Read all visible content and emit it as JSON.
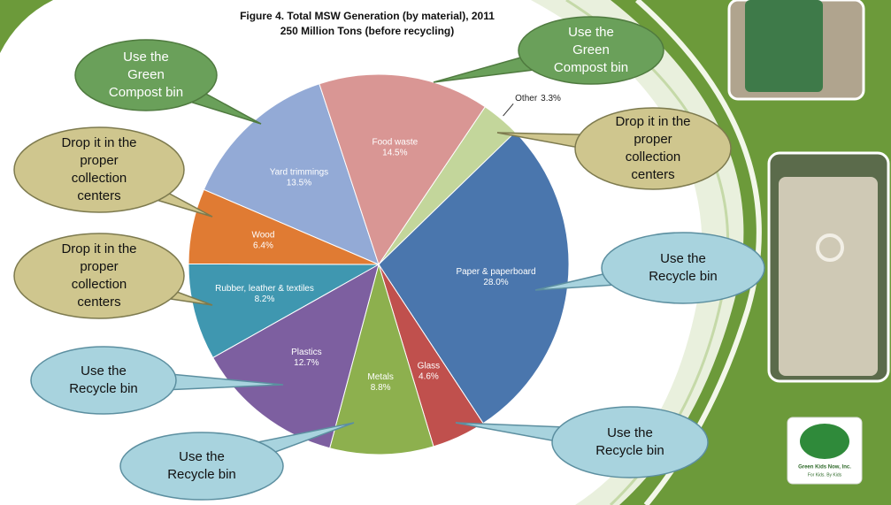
{
  "chart_data": {
    "type": "pie",
    "title": "Figure 4. Total MSW Generation (by material), 2011",
    "subtitle": "250 Million Tons (before recycling)",
    "categories": [
      "Other",
      "Paper & paperboard",
      "Glass",
      "Metals",
      "Plastics",
      "Rubber, leather & textiles",
      "Wood",
      "Yard trimmings",
      "Food waste"
    ],
    "values": [
      3.3,
      28.0,
      4.6,
      8.8,
      12.7,
      8.2,
      6.4,
      13.5,
      14.5
    ],
    "value_labels": [
      "3.3%",
      "28.0%",
      "4.6%",
      "8.8%",
      "12.7%",
      "8.2%",
      "6.4%",
      "13.5%",
      "14.5%"
    ],
    "colors": [
      "#c3d69b",
      "#4a76ad",
      "#c0504d",
      "#8db04e",
      "#7d5fa0",
      "#3f97b0",
      "#e07b33",
      "#93aad6",
      "#d99694"
    ]
  },
  "callouts": [
    {
      "style": "green",
      "lines": [
        "Use the",
        "Green",
        "Compost bin"
      ]
    },
    {
      "style": "green",
      "lines": [
        "Use the",
        "Green",
        "Compost bin"
      ]
    },
    {
      "style": "tan",
      "lines": [
        "Drop it in the",
        "proper",
        "collection",
        "centers"
      ]
    },
    {
      "style": "tan",
      "lines": [
        "Drop it in the",
        "proper",
        "collection",
        "centers"
      ]
    },
    {
      "style": "tan",
      "lines": [
        "Drop it in the",
        "proper",
        "collection",
        "centers"
      ]
    },
    {
      "style": "blue",
      "lines": [
        "Use the",
        "Recycle bin"
      ]
    },
    {
      "style": "blue",
      "lines": [
        "Use the",
        "Recycle bin"
      ]
    },
    {
      "style": "blue",
      "lines": [
        "Use the",
        "Recycle bin"
      ]
    },
    {
      "style": "blue",
      "lines": [
        "Use the",
        "Recycle bin"
      ]
    }
  ],
  "logo": {
    "name": "Green Kids Now, Inc.",
    "tagline": "For Kids. By Kids"
  }
}
